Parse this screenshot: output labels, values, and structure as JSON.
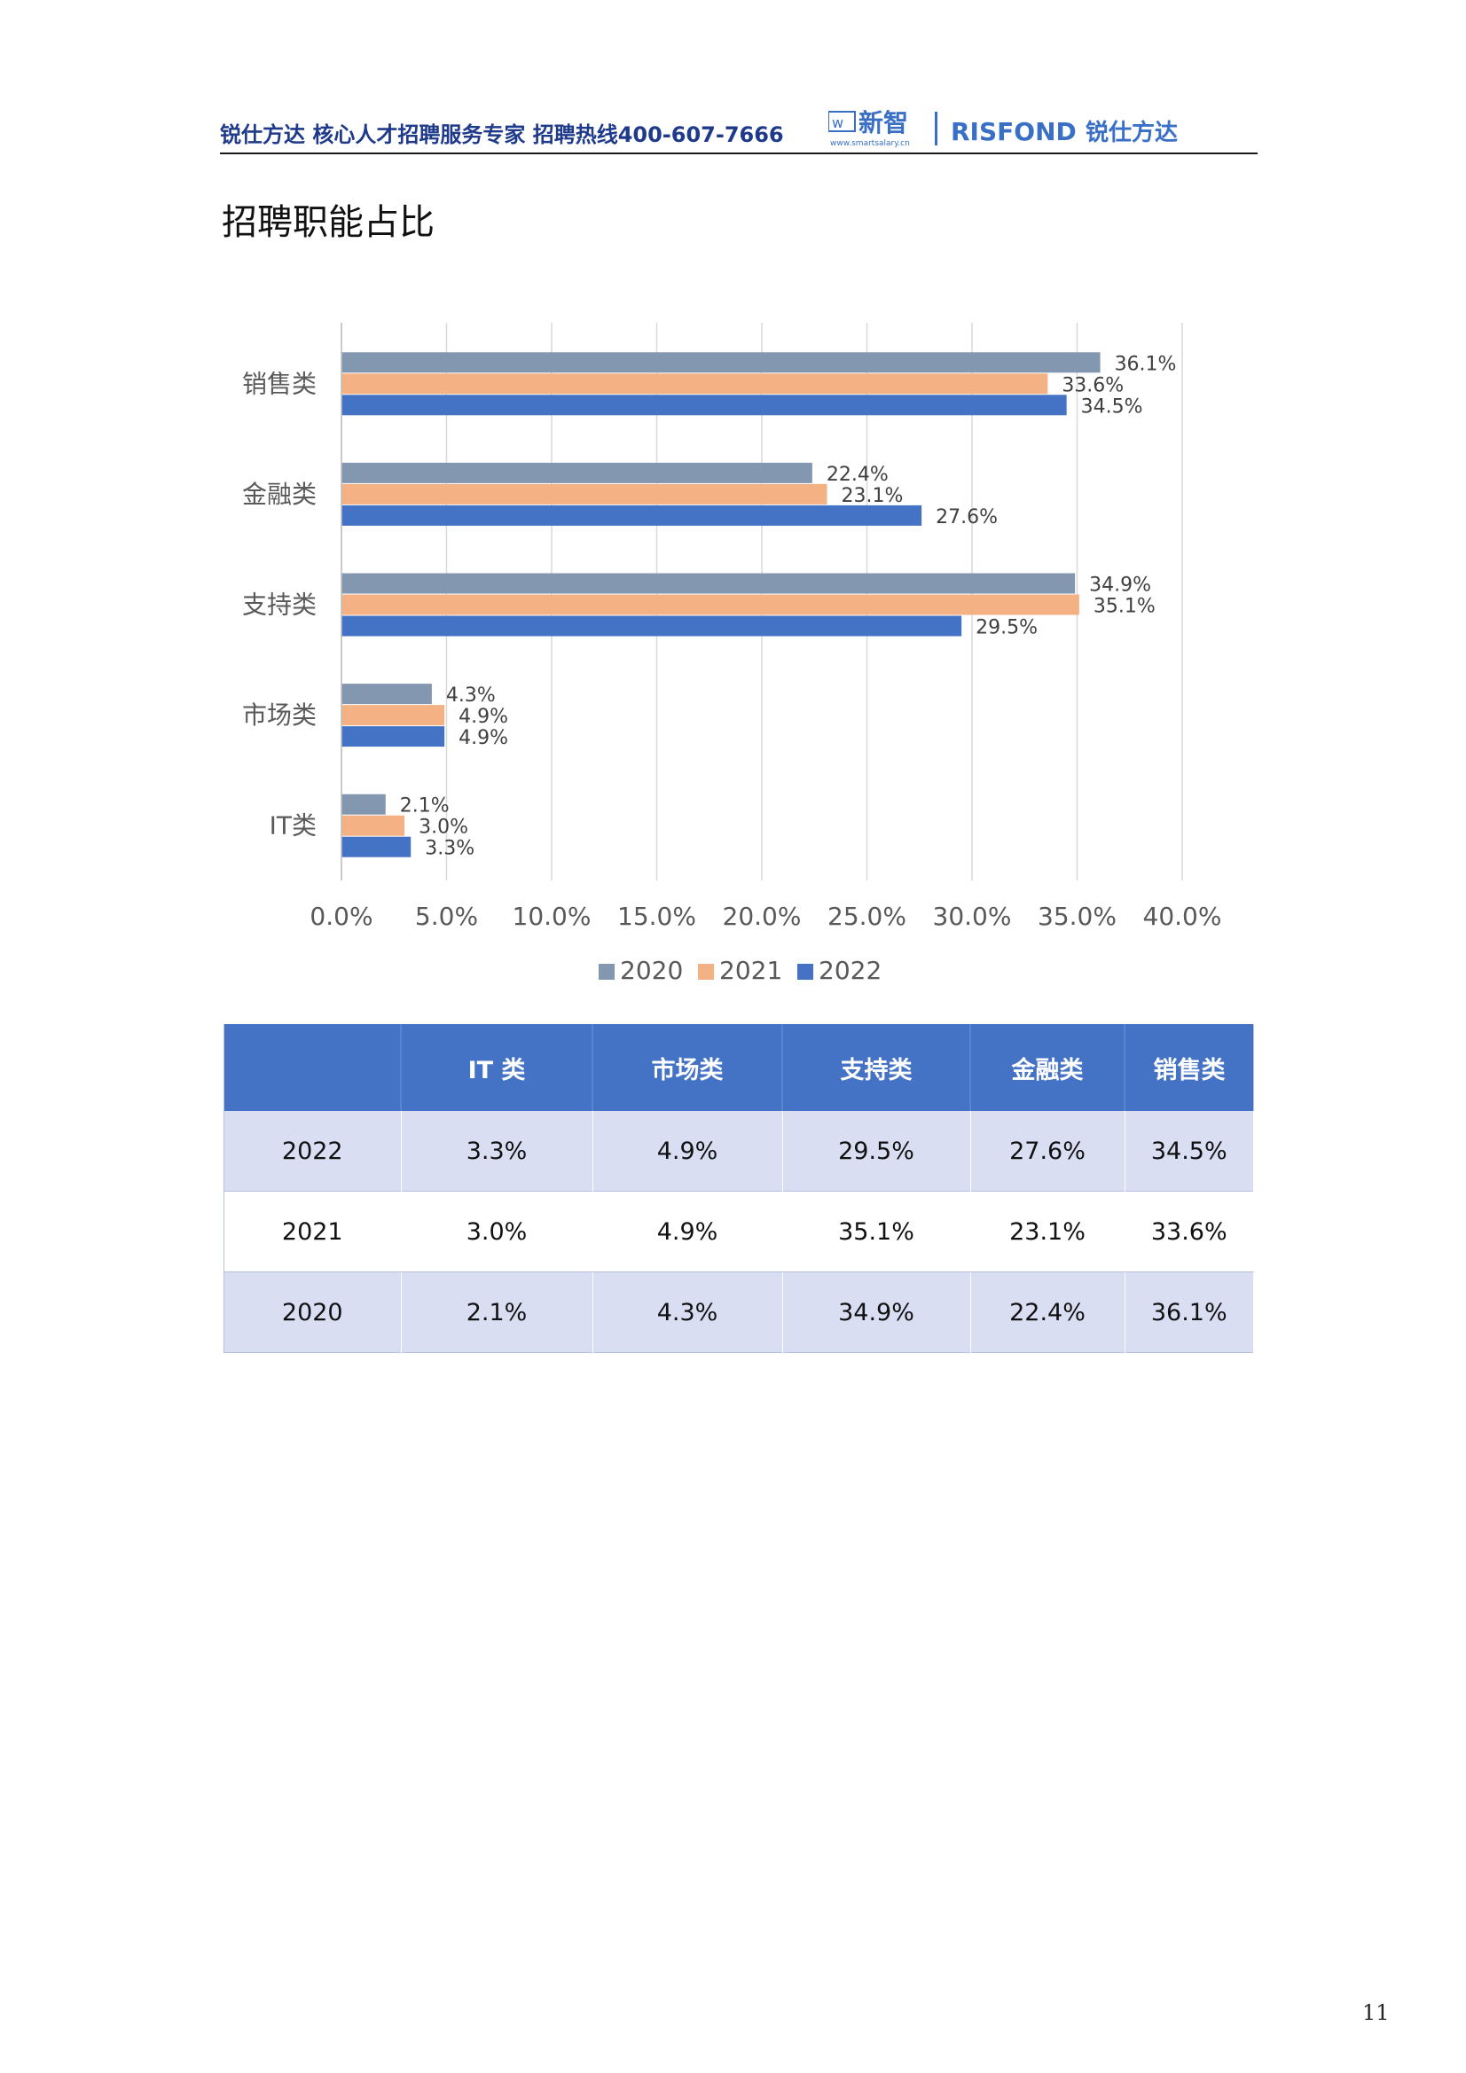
{
  "header": {
    "text": "锐仕方达  核心人才招聘服务专家  招聘热线400-607-7666",
    "logo_xinzhi": "新智",
    "logo_xinzhi_url": "www.smartsalary.cn",
    "logo_risfond": "RISFOND",
    "logo_risfond_cn": "锐仕方达"
  },
  "page_title": "招聘职能占比",
  "colors": {
    "2020": "#8497b0",
    "2021": "#f4b183",
    "2022": "#4472c4",
    "header_blue": "#1f3a8a",
    "table_header": "#4472c4",
    "table_band": "#d9def2"
  },
  "chart_data": {
    "type": "bar",
    "orientation": "horizontal",
    "categories": [
      "销售类",
      "金融类",
      "支持类",
      "市场类",
      "IT类"
    ],
    "series": [
      {
        "name": "2020",
        "values": [
          36.1,
          22.4,
          34.9,
          4.3,
          2.1
        ],
        "labels": [
          "36.1%",
          "22.4%",
          "34.9%",
          "4.3%",
          "2.1%"
        ]
      },
      {
        "name": "2021",
        "values": [
          33.6,
          23.1,
          35.1,
          4.9,
          3.0
        ],
        "labels": [
          "33.6%",
          "23.1%",
          "35.1%",
          "4.9%",
          "3.0%"
        ]
      },
      {
        "name": "2022",
        "values": [
          34.5,
          27.6,
          29.5,
          4.9,
          3.3
        ],
        "labels": [
          "34.5%",
          "27.6%",
          "29.5%",
          "4.9%",
          "3.3%"
        ]
      }
    ],
    "xlim": [
      0,
      40
    ],
    "xticks": [
      "0.0%",
      "5.0%",
      "10.0%",
      "15.0%",
      "20.0%",
      "25.0%",
      "30.0%",
      "35.0%",
      "40.0%"
    ],
    "grid": "vertical",
    "legend_position": "bottom",
    "title": "",
    "xlabel": "",
    "ylabel": ""
  },
  "table": {
    "headers": [
      "",
      "IT 类",
      "市场类",
      "支持类",
      "金融类",
      "销售类"
    ],
    "rows": [
      [
        "2022",
        "3.3%",
        "4.9%",
        "29.5%",
        "27.6%",
        "34.5%"
      ],
      [
        "2021",
        "3.0%",
        "4.9%",
        "35.1%",
        "23.1%",
        "33.6%"
      ],
      [
        "2020",
        "2.1%",
        "4.3%",
        "34.9%",
        "22.4%",
        "36.1%"
      ]
    ]
  },
  "page_number": "11"
}
